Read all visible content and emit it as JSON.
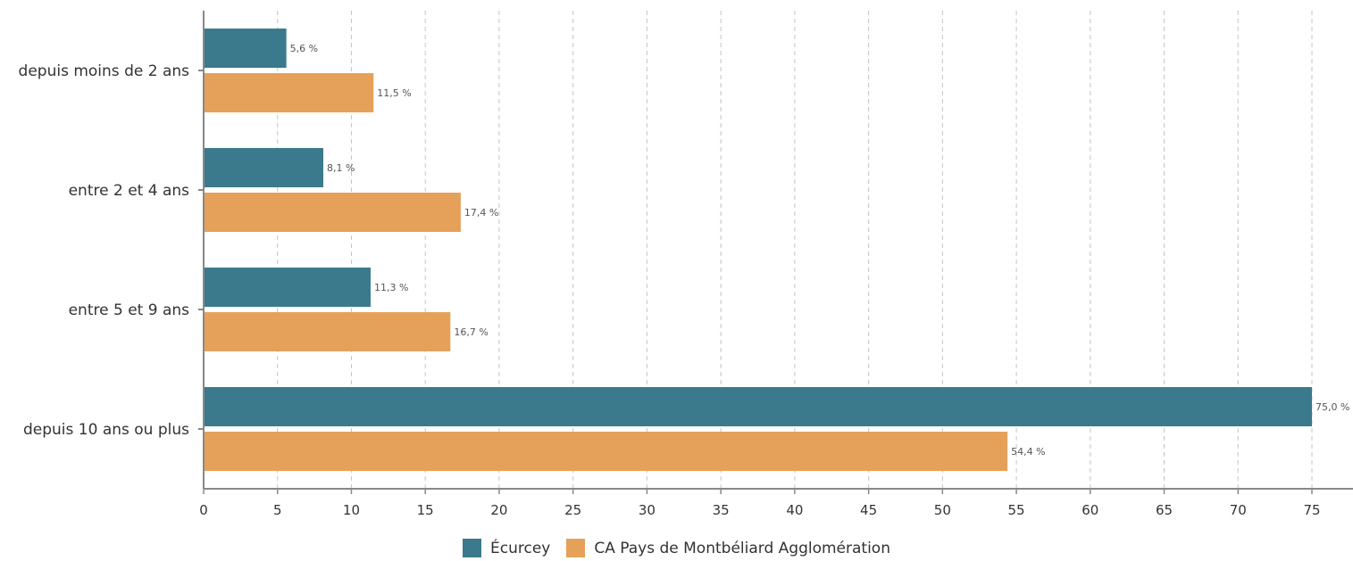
{
  "chart_data": {
    "type": "bar",
    "orientation": "horizontal",
    "categories": [
      "depuis moins de 2 ans",
      "entre 2 et 4 ans",
      "entre 5 et 9 ans",
      "depuis 10 ans ou plus"
    ],
    "series": [
      {
        "name": "Écurcey",
        "color": "#3a7a8c",
        "values": [
          5.6,
          8.1,
          11.3,
          75.0
        ],
        "labels": [
          "5,6 %",
          "8,1 %",
          "11,3 %",
          "75,0 %"
        ]
      },
      {
        "name": "CA Pays de Montbéliard Agglomération",
        "color": "#e5a15a",
        "values": [
          11.5,
          17.4,
          16.7,
          54.4
        ],
        "labels": [
          "11,5 %",
          "17,4 %",
          "16,7 %",
          "54,4 %"
        ]
      }
    ],
    "xlim": [
      0,
      77
    ],
    "xticks": [
      0,
      5,
      10,
      15,
      20,
      25,
      30,
      35,
      40,
      45,
      50,
      55,
      60,
      65,
      70,
      75
    ],
    "grid": true,
    "legend_position": "bottom-center",
    "title": "",
    "xlabel": "",
    "ylabel": ""
  }
}
